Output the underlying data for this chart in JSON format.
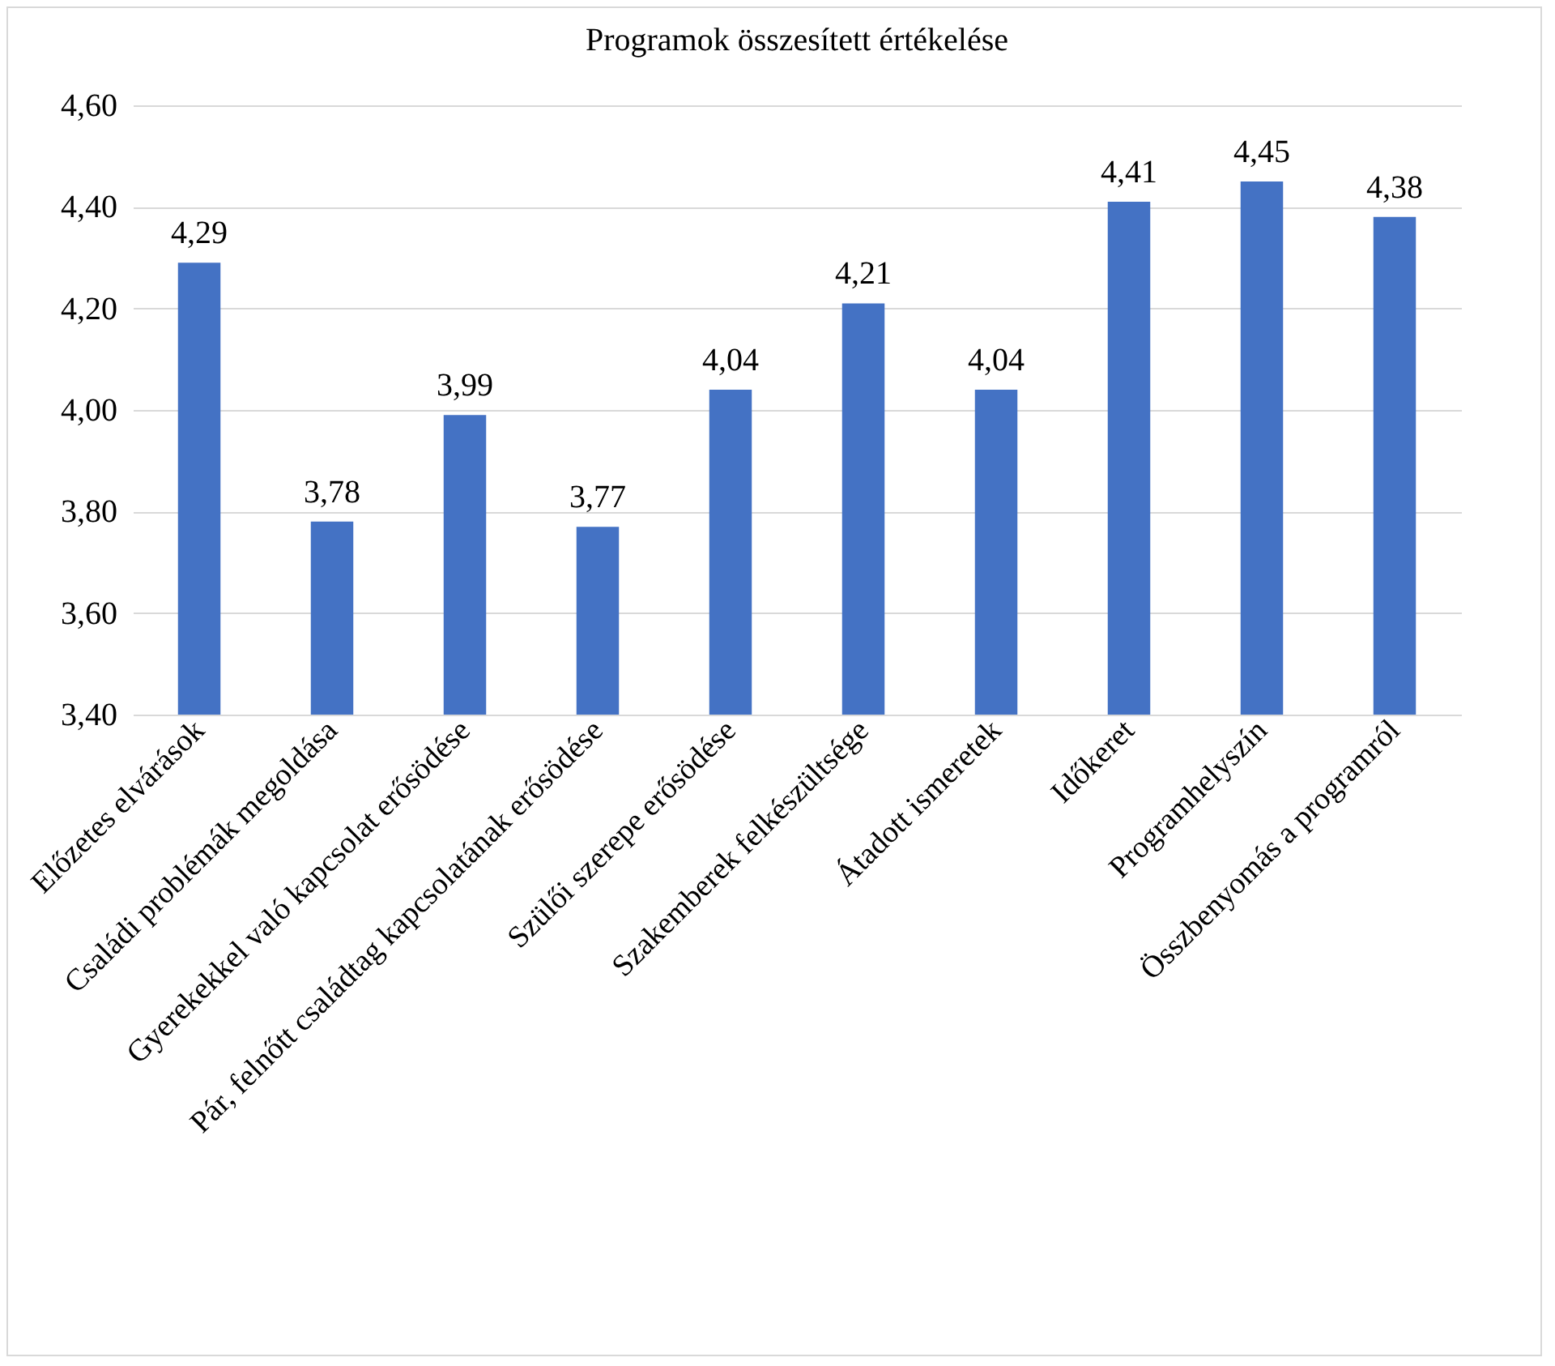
{
  "chart_data": {
    "type": "bar",
    "title": "Programok összesített értékelése",
    "categories": [
      "Előzetes elvárások",
      "Családi problémák megoldása",
      "Gyerekekkel való kapcsolat erősödése",
      "Pár, felnőtt családtag kapcsolatának erősödése",
      "Szülői szerepe erősödése",
      "Szakemberek felkészültsége",
      "Átadott ismeretek",
      "Időkeret",
      "Programhelyszín",
      "Összbenyomás a programról"
    ],
    "values": [
      4.29,
      3.78,
      3.99,
      3.77,
      4.04,
      4.21,
      4.04,
      4.41,
      4.45,
      4.38
    ],
    "value_labels": [
      "4,29",
      "3,78",
      "3,99",
      "3,77",
      "4,04",
      "4,21",
      "4,04",
      "4,41",
      "4,45",
      "4,38"
    ],
    "color": "#4472c4",
    "ylim": [
      3.4,
      4.6
    ],
    "yticks": [
      {
        "value": 3.4,
        "label": "3,40"
      },
      {
        "value": 3.6,
        "label": "3,60"
      },
      {
        "value": 3.8,
        "label": "3,80"
      },
      {
        "value": 4.0,
        "label": "4,00"
      },
      {
        "value": 4.2,
        "label": "4,20"
      },
      {
        "value": 4.4,
        "label": "4,40"
      },
      {
        "value": 4.6,
        "label": "4,60"
      }
    ],
    "grid": "y"
  }
}
